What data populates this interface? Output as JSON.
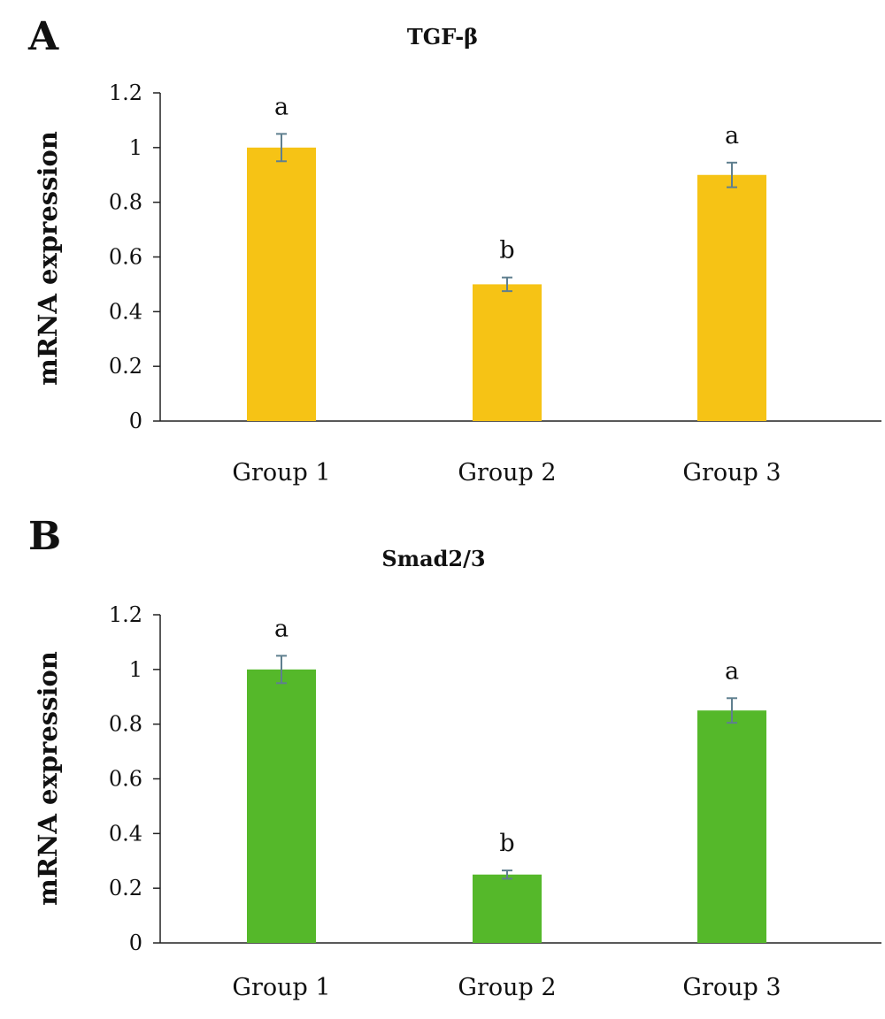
{
  "chart_data": [
    {
      "type": "bar",
      "panel": "A",
      "title": "TGF-β",
      "ylabel": "mRNA expression",
      "xlabel": "",
      "categories": [
        "Group 1",
        "Group 2",
        "Group 3"
      ],
      "values": [
        1.0,
        0.5,
        0.9
      ],
      "errors": [
        0.05,
        0.025,
        0.045
      ],
      "significance": [
        "a",
        "b",
        "a"
      ],
      "ylim": [
        0,
        1.2
      ],
      "yticks": [
        "0",
        "0.2",
        "0.4",
        "0.6",
        "0.8",
        "1",
        "1.2"
      ],
      "bar_color": "#F6C315",
      "error_color": "#5F7F8F",
      "grid": false
    },
    {
      "type": "bar",
      "panel": "B",
      "title": "Smad2/3",
      "ylabel": "mRNA expression",
      "xlabel": "",
      "categories": [
        "Group 1",
        "Group 2",
        "Group 3"
      ],
      "values": [
        1.0,
        0.25,
        0.85
      ],
      "errors": [
        0.05,
        0.015,
        0.045
      ],
      "significance": [
        "a",
        "b",
        "a"
      ],
      "ylim": [
        0,
        1.2
      ],
      "yticks": [
        "0",
        "0.2",
        "0.4",
        "0.6",
        "0.8",
        "1",
        "1.2"
      ],
      "bar_color": "#55B82A",
      "error_color": "#5F7F8F",
      "grid": false
    }
  ]
}
